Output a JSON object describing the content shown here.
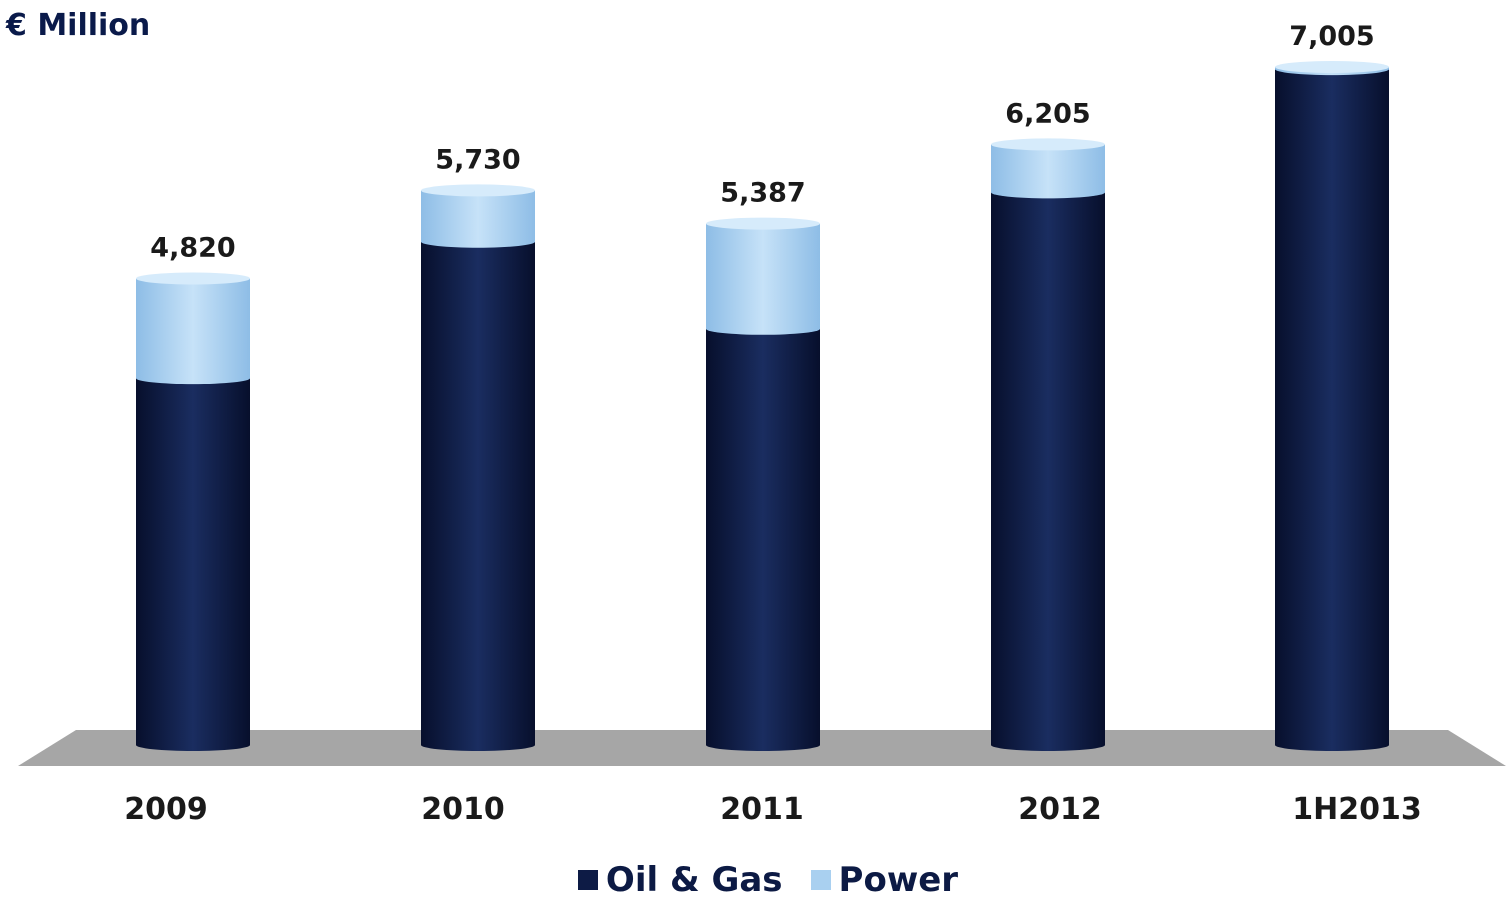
{
  "unit_label": "€ Million",
  "colors": {
    "oil_gas": "#0d1b45",
    "power": "#a9d0f0",
    "floor": "#a6a6a6",
    "text": "#1a1a1a"
  },
  "chart_data": {
    "type": "bar",
    "stacked": true,
    "categories": [
      "2009",
      "2010",
      "2011",
      "2012",
      "1H2013"
    ],
    "series": [
      {
        "name": "Oil & Gas",
        "values": [
          3790,
          5200,
          4300,
          5710,
          6983
        ]
      },
      {
        "name": "Power",
        "values": [
          1030,
          530,
          1087,
          495,
          22
        ]
      }
    ],
    "totals": [
      "4,820",
      "5,730",
      "5,387",
      "6,205",
      "7,005"
    ],
    "ylim": [
      0,
      7005
    ],
    "grid": false,
    "legend": "bottom",
    "title": "",
    "xlabel": "",
    "ylabel": "€ Million"
  }
}
